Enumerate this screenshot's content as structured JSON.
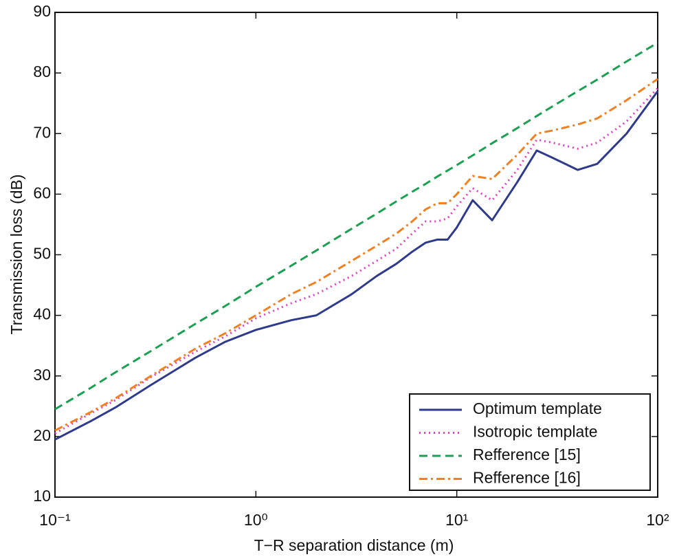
{
  "chart_data": {
    "type": "line",
    "xlabel": "T−R separation distance (m)",
    "ylabel": "Transmission loss (dB)",
    "xscale": "log",
    "x": [
      0.1,
      0.15,
      0.2,
      0.3,
      0.5,
      0.7,
      1,
      1.5,
      2,
      3,
      4,
      5,
      6,
      7,
      8,
      9,
      10,
      12,
      15,
      20,
      25,
      30,
      40,
      50,
      70,
      100
    ],
    "series": [
      {
        "name": "Optimum template",
        "color": "#2e3a8c",
        "dash": "none",
        "values": [
          19.5,
          22.5,
          24.8,
          28.5,
          33,
          35.6,
          37.6,
          39.2,
          40,
          43.5,
          46.5,
          48.5,
          50.5,
          52,
          52.5,
          52.5,
          54.5,
          59,
          55.7,
          62,
          67.2,
          66,
          64,
          65,
          70,
          77
        ]
      },
      {
        "name": "Isotropic template",
        "color": "#e040c0",
        "dash": "2 5",
        "values": [
          20.5,
          23.8,
          26,
          29.8,
          34,
          36.5,
          39.5,
          42,
          43.5,
          46.5,
          49,
          51,
          53.5,
          55.5,
          55.5,
          56,
          58,
          61,
          59,
          64,
          69,
          68.5,
          67.5,
          68.5,
          72,
          77.5
        ]
      },
      {
        "name": "Refference [15]",
        "color": "#1aa050",
        "dash": "12 7",
        "values": [
          24.5,
          28,
          30.6,
          34.1,
          38.6,
          41.5,
          44.7,
          48.2,
          50.7,
          54.3,
          56.8,
          58.8,
          60.4,
          61.7,
          62.9,
          63.9,
          64.8,
          66.4,
          68.4,
          70.9,
          72.9,
          74.5,
          77,
          78.9,
          81.9,
          85
        ]
      },
      {
        "name": "Refference [16]",
        "color": "#f08020",
        "dash": "12 5 3 5",
        "values": [
          21,
          24,
          26.3,
          30,
          34.5,
          37,
          40,
          43.5,
          45.5,
          49,
          51.5,
          53.5,
          55.5,
          57.5,
          58.5,
          58.5,
          60,
          63,
          62.5,
          66.5,
          70,
          70.5,
          71.5,
          72.5,
          75.5,
          79
        ]
      }
    ],
    "xlim": [
      0.1,
      100
    ],
    "xticks": [
      {
        "value": 0.1,
        "label": "10⁻¹"
      },
      {
        "value": 1,
        "label": "10⁰"
      },
      {
        "value": 10,
        "label": "10¹"
      },
      {
        "value": 100,
        "label": "10²"
      }
    ],
    "ylim": [
      10,
      90
    ],
    "yticks": [
      10,
      20,
      30,
      40,
      50,
      60,
      70,
      80,
      90
    ],
    "grid": false,
    "legend": "lower right"
  }
}
